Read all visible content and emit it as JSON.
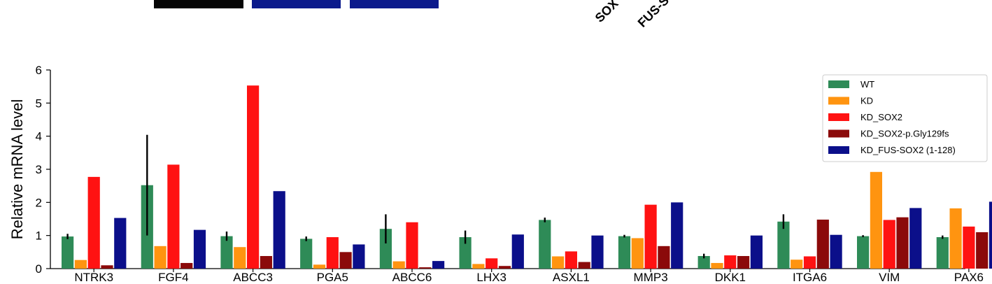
{
  "top_fragments": {
    "left_label": "SOX",
    "right_label": "FUS-S"
  },
  "chart_data": {
    "type": "bar",
    "title": "",
    "xlabel": "",
    "ylabel": "Relative mRNA level",
    "ylim": [
      0,
      6
    ],
    "yticks": [
      "0",
      "1",
      "2",
      "3",
      "4",
      "5",
      "6"
    ],
    "categories": [
      "NTRK3",
      "FGF4",
      "ABCC3",
      "PGA5",
      "ABCC6",
      "LHX3",
      "ASXL1",
      "MMP3",
      "DKK1",
      "ITGA6",
      "VIM",
      "PAX6"
    ],
    "legend_position": "upper-right",
    "grid": false,
    "series": [
      {
        "name": "WT",
        "color": "#2e8b57",
        "values": [
          0.97,
          2.52,
          0.98,
          0.9,
          1.2,
          0.95,
          1.47,
          0.98,
          0.38,
          1.42,
          0.98,
          0.95
        ],
        "errors": [
          0.08,
          1.52,
          0.14,
          0.07,
          0.44,
          0.2,
          0.07,
          0.04,
          0.07,
          0.22,
          0.03,
          0.05
        ]
      },
      {
        "name": "KD",
        "color": "#ff9410",
        "values": [
          0.26,
          0.68,
          0.65,
          0.12,
          0.22,
          0.14,
          0.37,
          0.92,
          0.17,
          0.27,
          2.92,
          1.82
        ]
      },
      {
        "name": "KD_SOX2",
        "color": "#ff1212",
        "values": [
          2.77,
          3.14,
          5.53,
          0.95,
          1.4,
          0.31,
          0.52,
          1.93,
          0.4,
          0.37,
          1.47,
          1.27
        ]
      },
      {
        "name": "KD_SOX2-p.Gly129fs",
        "color": "#8b0a0a",
        "values": [
          0.1,
          0.17,
          0.38,
          0.5,
          0.04,
          0.08,
          0.2,
          0.68,
          0.38,
          1.48,
          1.55,
          1.1
        ]
      },
      {
        "name": "KD_FUS-SOX2 (1-128)",
        "color": "#0b0f8a",
        "values": [
          1.53,
          1.17,
          2.34,
          0.73,
          0.23,
          1.03,
          1.0,
          2.0,
          1.0,
          1.02,
          1.83,
          2.02
        ]
      }
    ]
  }
}
